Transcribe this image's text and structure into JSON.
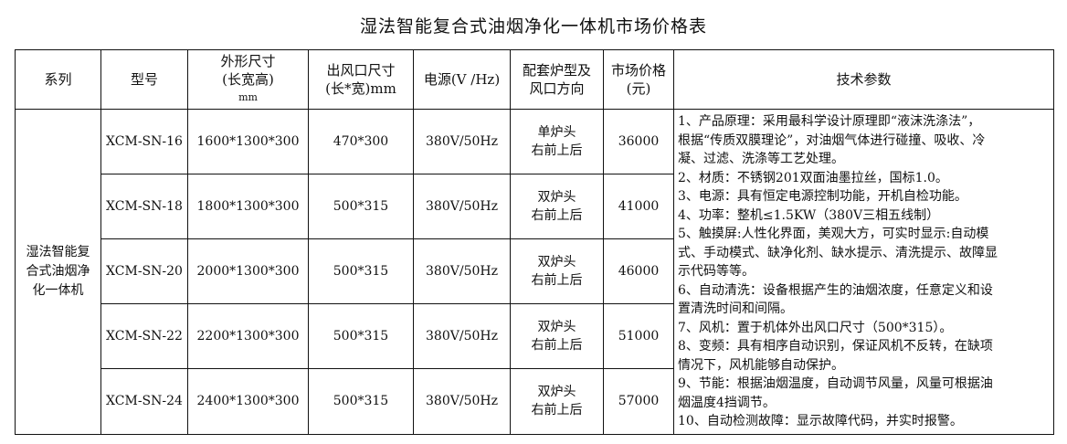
{
  "title": "湿法智能复合式油烟净化一体机市场价格表",
  "headers": {
    "series": "系列",
    "model": "型号",
    "dims_l1": "外形尺寸",
    "dims_l2": "(长宽高)",
    "dims_l3": "mm",
    "outlet_l1": "出风口尺寸",
    "outlet_l2": "(长*宽)mm",
    "power": "电源(V /Hz)",
    "stove_l1": "配套炉型及",
    "stove_l2": "风口方向",
    "price_l1": "市场价格",
    "price_l2": "(元)",
    "params": "技术参数"
  },
  "series_name": "湿法智能复合式油烟净化一体机",
  "rows": [
    {
      "model": "XCM-SN-16",
      "dims": "1600*1300*300",
      "outlet": "470*300",
      "power": "380V/50Hz",
      "stove_l1": "单炉头",
      "stove_l2": "右前上后",
      "price": "36000"
    },
    {
      "model": "XCM-SN-18",
      "dims": "1800*1300*300",
      "outlet": "500*315",
      "power": "380V/50Hz",
      "stove_l1": "双炉头",
      "stove_l2": "右前上后",
      "price": "41000"
    },
    {
      "model": "XCM-SN-20",
      "dims": "2000*1300*300",
      "outlet": "500*315",
      "power": "380V/50Hz",
      "stove_l1": "双炉头",
      "stove_l2": "右前上后",
      "price": "46000"
    },
    {
      "model": "XCM-SN-22",
      "dims": "2200*1300*300",
      "outlet": "500*315",
      "power": "380V/50Hz",
      "stove_l1": "双炉头",
      "stove_l2": "右前上后",
      "price": "51000"
    },
    {
      "model": "XCM-SN-24",
      "dims": "2400*1300*300",
      "outlet": "500*315",
      "power": "380V/50Hz",
      "stove_l1": "双炉头",
      "stove_l2": "右前上后",
      "price": "57000"
    }
  ],
  "params_lines": [
    "1、产品原理：采用最科学设计原理即“液沫洗涤法”，",
    "根据“传质双膜理论”，对油烟气体进行碰撞、吸收、冷",
    "凝、过滤、洗涤等工艺处理。",
    "2、材质：不锈钢201双面油墨拉丝，国标1.0。",
    "3、电源：具有恒定电源控制功能，开机自检功能。",
    "4、功率：整机≤1.5KW（380V三相五线制）",
    "5、触摸屏:人性化界面，美观大方，可实时显示:自动模",
    "式、手动模式、缺净化剂、缺水提示、清洗提示、故障显",
    "示代码等等。",
    "6、自动清洗：设备根据产生的油烟浓度，任意定义和设",
    "置清洗时间和间隔。",
    "7、风机：置于机体外出风口尺寸（500*315）。",
    "8、变频：具有相序自动识别，保证风机不反转，在缺项",
    "情况下，风机能够自动保护。",
    "9、节能：根据油烟温度，自动调节风量，风量可根据油",
    "烟温度4挡调节。",
    "10、自动检测故障：显示故障代码，并实时报警。"
  ]
}
